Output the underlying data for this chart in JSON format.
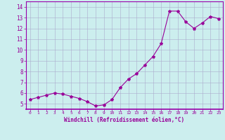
{
  "x": [
    0,
    1,
    2,
    3,
    4,
    5,
    6,
    7,
    8,
    9,
    10,
    11,
    12,
    13,
    14,
    15,
    16,
    17,
    18,
    19,
    20,
    21,
    22,
    23
  ],
  "y": [
    5.4,
    5.6,
    5.8,
    6.0,
    5.9,
    5.7,
    5.5,
    5.2,
    4.8,
    4.9,
    5.4,
    6.5,
    7.3,
    7.8,
    8.6,
    9.4,
    10.6,
    13.6,
    13.6,
    12.6,
    12.0,
    12.5,
    13.1,
    12.9
  ],
  "line_color": "#990099",
  "marker": "*",
  "marker_size": 3,
  "bg_color": "#cceeee",
  "grid_color": "#aaaacc",
  "xlabel": "Windchill (Refroidissement éolien,°C)",
  "xlabel_color": "#990099",
  "tick_color": "#990099",
  "xlim": [
    -0.5,
    23.5
  ],
  "ylim": [
    4.5,
    14.5
  ],
  "yticks": [
    5,
    6,
    7,
    8,
    9,
    10,
    11,
    12,
    13,
    14
  ],
  "xticks": [
    0,
    1,
    2,
    3,
    4,
    5,
    6,
    7,
    8,
    9,
    10,
    11,
    12,
    13,
    14,
    15,
    16,
    17,
    18,
    19,
    20,
    21,
    22,
    23
  ],
  "spine_color": "#9900aa",
  "axis_bottom_color": "#9900aa"
}
